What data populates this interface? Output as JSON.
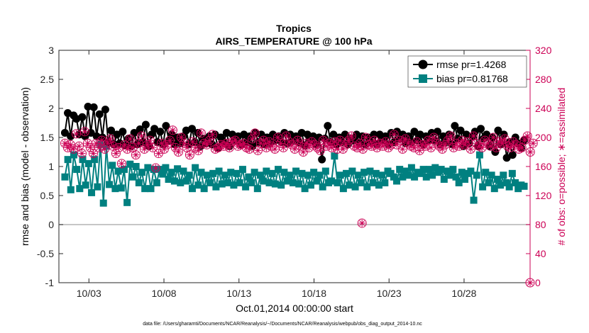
{
  "chart_data": {
    "type": "line",
    "title_line1": "Tropics",
    "title_line2": "AIRS_TEMPERATURE @ 100 hPa",
    "xlabel": "Oct.01,2014 00:00:00 start",
    "ylabel_left": "rmse and bias (model - observation)",
    "ylabel_right": "# of obs: o=possible; ∗=assimilated",
    "footnote": "data file: /Users/gharamti/Documents/NCAR/Reanalysis/~/Documents/NCAR/Reanalysis/webpub/obs_diag_output_2014-10.nc",
    "x_ticks": [
      {
        "day": 3,
        "label": "10/03"
      },
      {
        "day": 8,
        "label": "10/08"
      },
      {
        "day": 13,
        "label": "10/13"
      },
      {
        "day": 18,
        "label": "10/18"
      },
      {
        "day": 23,
        "label": "10/23"
      },
      {
        "day": 28,
        "label": "10/28"
      }
    ],
    "x_range_days": [
      1.0,
      32.4
    ],
    "ylim_left": [
      -1,
      3
    ],
    "y_ticks_left": [
      "-1",
      "-0.5",
      "0",
      "0.5",
      "1",
      "1.5",
      "2",
      "2.5",
      "3"
    ],
    "ylim_right": [
      0,
      320
    ],
    "y_ticks_right": [
      "0",
      "40",
      "80",
      "120",
      "160",
      "200",
      "240",
      "280",
      "320"
    ],
    "zero_line": 0,
    "colors": {
      "rmse": "#000000",
      "bias": "#008080",
      "obs": "#cc0055",
      "zero": "#b3b3b3"
    },
    "legend": {
      "placement": "top-right",
      "rmse_label": "rmse pr=1.4268",
      "bias_label": "bias pr=0.81768"
    },
    "series": [
      {
        "name": "rmse",
        "values": [
          1.58,
          1.92,
          1.52,
          1.88,
          1.82,
          1.55,
          1.85,
          1.52,
          2.03,
          1.58,
          2.02,
          1.52,
          1.9,
          1.5,
          1.98,
          1.42,
          1.62,
          1.38,
          1.55,
          1.4,
          1.6,
          1.36,
          1.48,
          1.35,
          1.58,
          1.38,
          1.64,
          1.42,
          1.72,
          1.35,
          1.55,
          1.65,
          1.42,
          1.6,
          1.38,
          1.7,
          1.45,
          1.55,
          1.38,
          1.5,
          1.4,
          1.52,
          1.62,
          1.38,
          1.65,
          1.42,
          1.58,
          1.35,
          1.48,
          1.4,
          1.52,
          1.38,
          1.55,
          1.32,
          1.5,
          1.42,
          1.58,
          1.35,
          1.55,
          1.45,
          1.52,
          1.38,
          1.55,
          1.42,
          1.52,
          1.35,
          1.58,
          1.42,
          1.55,
          1.38,
          1.5,
          1.4,
          1.55,
          1.45,
          1.52,
          1.42,
          1.58,
          1.4,
          1.55,
          1.45,
          1.52,
          1.42,
          1.58,
          1.36,
          1.55,
          1.45,
          1.52,
          1.38,
          1.5,
          1.12,
          1.48,
          1.7,
          1.42,
          1.55,
          1.38,
          1.5,
          1.42,
          1.55,
          1.38,
          1.48,
          1.45,
          1.55,
          1.4,
          1.52,
          1.38,
          1.5,
          1.42,
          1.55,
          1.38,
          1.55,
          1.45,
          1.52,
          1.38,
          1.58,
          1.42,
          1.6,
          1.48,
          1.55,
          1.4,
          1.52,
          1.42,
          1.6,
          1.45,
          1.55,
          1.38,
          1.52,
          1.45,
          1.58,
          1.45,
          1.6,
          1.38,
          1.52,
          1.42,
          1.55,
          1.38,
          1.7,
          1.48,
          1.62,
          1.35,
          1.55,
          1.4,
          1.52,
          1.6,
          1.35,
          1.65,
          1.48,
          1.55,
          1.35,
          1.5,
          1.25,
          1.62,
          1.38,
          1.55,
          1.15,
          1.42,
          1.2,
          1.5,
          1.4,
          1.32,
          1.45
        ]
      },
      {
        "name": "bias",
        "values": [
          0.82,
          1.12,
          0.6,
          1.2,
          0.95,
          0.62,
          1.12,
          0.68,
          1.05,
          0.55,
          1.12,
          0.65,
          1.38,
          0.37,
          1.35,
          0.69,
          1.02,
          0.62,
          0.92,
          0.63,
          0.95,
          0.38,
          1.04,
          0.82,
          1.0,
          0.72,
          0.9,
          0.62,
          0.98,
          0.62,
          0.95,
          0.72,
          0.95,
          0.87,
          0.98,
          0.78,
          0.9,
          0.75,
          0.96,
          0.72,
          0.92,
          0.75,
          0.85,
          0.62,
          0.98,
          0.68,
          0.9,
          0.62,
          0.85,
          0.72,
          0.88,
          0.65,
          0.92,
          0.7,
          0.85,
          0.72,
          0.9,
          0.68,
          0.88,
          0.72,
          0.95,
          0.65,
          0.82,
          0.72,
          0.9,
          0.62,
          0.85,
          0.75,
          0.92,
          0.72,
          0.88,
          0.7,
          0.95,
          0.68,
          0.9,
          0.75,
          0.85,
          0.72,
          0.92,
          0.7,
          0.88,
          0.62,
          0.85,
          0.68,
          0.9,
          0.75,
          0.85,
          0.65,
          0.92,
          0.72,
          0.75,
          1.18,
          0.72,
          0.85,
          0.62,
          0.88,
          0.68,
          0.92,
          0.65,
          0.85,
          0.72,
          0.9,
          0.65,
          0.92,
          0.72,
          0.88,
          0.68,
          0.85,
          0.72,
          0.92,
          0.88,
          0.82,
          0.75,
          0.95,
          0.82,
          0.92,
          0.85,
          0.98,
          0.82,
          0.9,
          0.88,
          0.95,
          0.82,
          0.95,
          0.85,
          0.98,
          0.9,
          0.95,
          0.78,
          0.92,
          0.85,
          0.95,
          0.82,
          0.72,
          0.9,
          0.78,
          0.88,
          0.92,
          0.42,
          0.85,
          1.2,
          0.65,
          0.9,
          0.72,
          0.85,
          0.62,
          0.78,
          0.68,
          0.85,
          0.72,
          0.65,
          0.88,
          0.72,
          0.62,
          0.68,
          0.66
        ]
      },
      {
        "name": "obs_possible",
        "axis": "right",
        "values": [
          192,
          186,
          190,
          184,
          205,
          188,
          178,
          208,
          192,
          186,
          178,
          192,
          186,
          196,
          184,
          192,
          198,
          188,
          178,
          186,
          164,
          190,
          184,
          198,
          186,
          176,
          192,
          202,
          184,
          190,
          196,
          186,
          158,
          178,
          192,
          184,
          190,
          196,
          210,
          186,
          180,
          200,
          192,
          186,
          176,
          194,
          186,
          182,
          206,
          192,
          190,
          196,
          204,
          184,
          186,
          190,
          188,
          192,
          186,
          194,
          196,
          188,
          190,
          192,
          186,
          184,
          198,
          206,
          182,
          192,
          196,
          186,
          194,
          188,
          184,
          200,
          192,
          186,
          202,
          194,
          190,
          184,
          196,
          188,
          180,
          192,
          186,
          194,
          190,
          186,
          182,
          196,
          188,
          192,
          186,
          194,
          184,
          196,
          184,
          190,
          196,
          202,
          188,
          186,
          192,
          184,
          200,
          190,
          188,
          196,
          186,
          192,
          188,
          194,
          186,
          190,
          204,
          190,
          196,
          184,
          198,
          192,
          188,
          186,
          194,
          182,
          190,
          188,
          196,
          186,
          200,
          192,
          188,
          184,
          190,
          196,
          202,
          186,
          192,
          188,
          196,
          190,
          194,
          184,
          202,
          192,
          188,
          186,
          196,
          192,
          188,
          200,
          186,
          194,
          192,
          198,
          188,
          186,
          194,
          190,
          184,
          186,
          196,
          202,
          180,
          192
        ]
      },
      {
        "name": "obs_assimilated",
        "axis": "right",
        "values": [
          192,
          186,
          190,
          184,
          205,
          188,
          178,
          208,
          192,
          186,
          178,
          192,
          186,
          196,
          184,
          192,
          198,
          188,
          178,
          186,
          164,
          190,
          184,
          198,
          186,
          176,
          192,
          202,
          184,
          190,
          196,
          186,
          158,
          178,
          192,
          184,
          190,
          196,
          210,
          186,
          180,
          200,
          192,
          186,
          176,
          194,
          186,
          182,
          206,
          192,
          190,
          196,
          204,
          184,
          186,
          190,
          188,
          192,
          186,
          194,
          196,
          188,
          190,
          192,
          186,
          184,
          198,
          206,
          182,
          192,
          196,
          186,
          194,
          188,
          184,
          200,
          192,
          186,
          202,
          194,
          190,
          184,
          196,
          188,
          180,
          192,
          186,
          194,
          190,
          186,
          182,
          196,
          188,
          192,
          186,
          194,
          184,
          196,
          184,
          190,
          196,
          202,
          188,
          186,
          192,
          184,
          200,
          190,
          188,
          196,
          186,
          192,
          188,
          194,
          186,
          190,
          204,
          190,
          196,
          184,
          198,
          192,
          188,
          186,
          194,
          182,
          190,
          188,
          196,
          186,
          200,
          192,
          188,
          184,
          190,
          196,
          202,
          186,
          192,
          188,
          196,
          190,
          194,
          184,
          202,
          192,
          188,
          186,
          196,
          192,
          188,
          200,
          186,
          194,
          192,
          198,
          188,
          186,
          194,
          190,
          184,
          186,
          196,
          202,
          180,
          192
        ]
      },
      {
        "name": "obs_outliers",
        "axis": "right",
        "points": [
          {
            "day": 21.2,
            "value": 82
          },
          {
            "day": 32.4,
            "value": 0
          }
        ]
      }
    ]
  }
}
